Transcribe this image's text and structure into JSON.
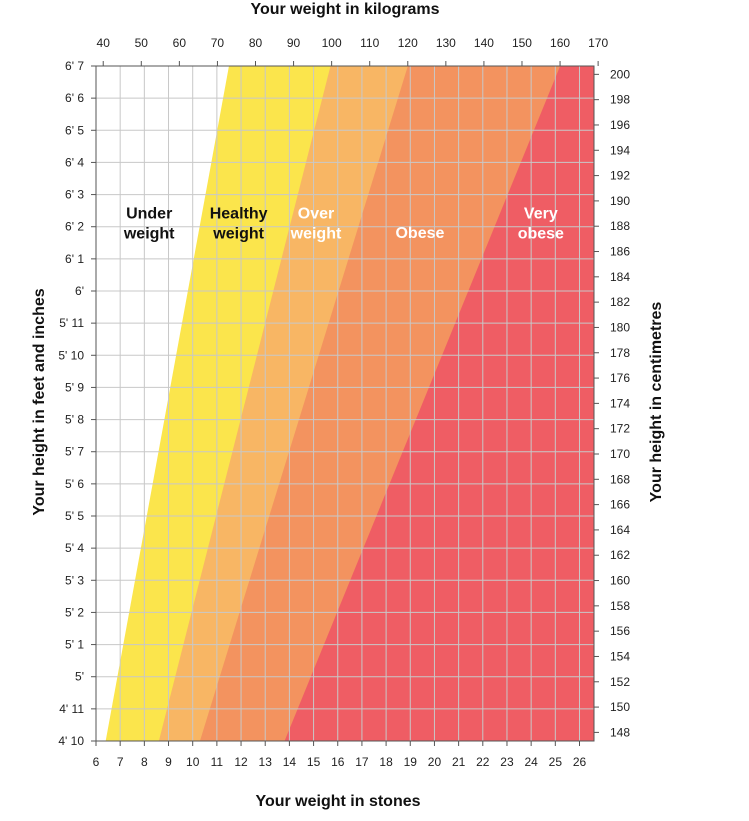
{
  "chart_data": {
    "type": "area",
    "title": "",
    "top_axis": {
      "label": "Your weight in kilograms",
      "ticks": [
        40,
        50,
        60,
        70,
        80,
        90,
        100,
        110,
        120,
        130,
        140,
        150,
        160,
        170
      ]
    },
    "bottom_axis": {
      "label": "Your weight in stones",
      "ticks": [
        6,
        7,
        8,
        9,
        10,
        11,
        12,
        13,
        14,
        15,
        16,
        17,
        18,
        19,
        20,
        21,
        22,
        23,
        24,
        25,
        26
      ],
      "range": [
        6,
        26.6
      ]
    },
    "left_axis": {
      "label": "Your height in feet and inches",
      "ticks": [
        "4' 10",
        "4' 11",
        "5'",
        "5' 1",
        "5' 2",
        "5' 3",
        "5' 4",
        "5' 5",
        "5' 6",
        "5' 7",
        "5' 8",
        "5' 9",
        "5' 10",
        "5' 11",
        "6'",
        "6' 1",
        "6' 2",
        "6' 3",
        "6' 4",
        "6' 5",
        "6' 6",
        "6' 7"
      ],
      "range_inches": [
        58,
        79
      ]
    },
    "right_axis": {
      "label": "Your height in centimetres",
      "ticks": [
        148,
        150,
        152,
        154,
        156,
        158,
        160,
        162,
        164,
        166,
        168,
        170,
        172,
        174,
        176,
        178,
        180,
        182,
        184,
        186,
        188,
        190,
        192,
        194,
        196,
        198,
        200
      ]
    },
    "grid": true,
    "zones": [
      {
        "name_lines": [
          "Under",
          "weight"
        ],
        "color": "#ffffff",
        "text_color": "#111111",
        "label_at": [
          8.2,
          74.1
        ]
      },
      {
        "name_lines": [
          "Healthy",
          "weight"
        ],
        "color": "#fbe54c",
        "text_color": "#111111",
        "label_at": [
          11.9,
          74.1
        ],
        "start_at_min_height_st": 6.4,
        "start_at_max_height_st": 11.5
      },
      {
        "name_lines": [
          "Over",
          "weight"
        ],
        "color": "#f8b664",
        "text_color": "#ffffff",
        "label_at": [
          15.1,
          74.1
        ],
        "start_at_min_height_st": 8.6,
        "start_at_max_height_st": 15.7
      },
      {
        "name_lines": [
          "Obese"
        ],
        "color": "#f3935f",
        "text_color": "#ffffff",
        "label_at": [
          19.4,
          73.8
        ],
        "start_at_min_height_st": 10.3,
        "start_at_max_height_st": 18.9
      },
      {
        "name_lines": [
          "Very",
          "obese"
        ],
        "color": "#ef5d64",
        "text_color": "#ffffff",
        "label_at": [
          24.4,
          74.1
        ],
        "start_at_min_height_st": 13.8,
        "start_at_max_height_st": 25.2
      }
    ]
  }
}
